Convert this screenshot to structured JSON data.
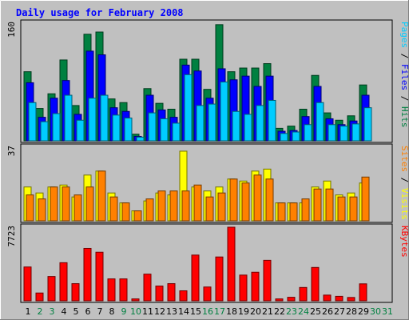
{
  "chart_data": {
    "type": "bar",
    "title": "Daily usage for February 2008",
    "categories": [
      "1",
      "2",
      "3",
      "4",
      "5",
      "6",
      "7",
      "8",
      "9",
      "10",
      "11",
      "12",
      "13",
      "14",
      "15",
      "16",
      "17",
      "18",
      "19",
      "20",
      "21",
      "22",
      "23",
      "24",
      "25",
      "26",
      "27",
      "28",
      "29",
      "30",
      "31"
    ],
    "weekend_days": [
      "2",
      "3",
      "9",
      "10",
      "16",
      "17",
      "23",
      "24",
      "30",
      "31"
    ],
    "panels": [
      {
        "id": "hits-files-pages",
        "ymax_label": "160",
        "ymax": 160,
        "axis_labels": [
          {
            "text": "Pages",
            "color": "#00ccff"
          },
          {
            "text": " / ",
            "color": "#000000"
          },
          {
            "text": "Files",
            "color": "#0000ff"
          },
          {
            "text": " / ",
            "color": "#000000"
          },
          {
            "text": "Hits",
            "color": "#008040"
          }
        ],
        "series": [
          {
            "name": "Hits",
            "color": "#008040",
            "values": [
              94,
              44,
              64,
              110,
              48,
              145,
              148,
              57,
              52,
              9,
              71,
              51,
              43,
              111,
              111,
              70,
              158,
              94,
              99,
              99,
              105,
              17,
              20,
              43,
              89,
              38,
              28,
              34,
              76,
              null,
              null
            ]
          },
          {
            "name": "Files",
            "color": "#0000ff",
            "values": [
              79,
              32,
              58,
              82,
              36,
              122,
              117,
              45,
              40,
              6,
              62,
              42,
              32,
              103,
              95,
              58,
              98,
              83,
              88,
              74,
              88,
              13,
              14,
              33,
              74,
              30,
              22,
              27,
              62,
              null,
              null
            ]
          },
          {
            "name": "Pages",
            "color": "#00ccff",
            "values": [
              52,
              26,
              37,
              62,
              28,
              58,
              62,
              35,
              31,
              5,
              38,
              30,
              24,
              90,
              48,
              50,
              80,
              40,
              36,
              48,
              55,
              10,
              12,
              22,
              52,
              22,
              20,
              23,
              45,
              null,
              null
            ]
          }
        ]
      },
      {
        "id": "visits-sites",
        "ymax_label": "37",
        "ymax": 37,
        "axis_labels": [
          {
            "text": "Sites",
            "color": "#ff8000"
          },
          {
            "text": " / ",
            "color": "#000000"
          },
          {
            "text": "Visits",
            "color": "#ffff00"
          }
        ],
        "series": [
          {
            "name": "Visits",
            "color": "#ffff00",
            "values": [
              17,
              14,
              17,
              18,
              12,
              23,
              25,
              14,
              9,
              5,
              10,
              14,
              13,
              35,
              17,
              15,
              17,
              21,
              20,
              25,
              26,
              9,
              9,
              9,
              17,
              20,
              13,
              14,
              19,
              null,
              null
            ]
          },
          {
            "name": "Sites",
            "color": "#ff8000",
            "values": [
              13,
              11,
              17,
              17,
              13,
              17,
              25,
              12,
              9,
              5,
              11,
              15,
              15,
              15,
              18,
              12,
              14,
              21,
              19,
              23,
              21,
              9,
              9,
              11,
              16,
              16,
              12,
              12,
              22,
              null,
              null
            ]
          }
        ]
      },
      {
        "id": "kbytes",
        "ymax_label": "7723",
        "ymax": 7723,
        "axis_labels": [
          {
            "text": "KBytes",
            "color": "#ff0000"
          }
        ],
        "series": [
          {
            "name": "KBytes",
            "color": "#ff0000",
            "values": [
              3550,
              820,
              2550,
              4000,
              1800,
              5500,
              5100,
              2300,
              2300,
              200,
              2800,
              1550,
              1800,
              1050,
              4800,
              1450,
              4600,
              7723,
              2700,
              3000,
              4250,
              200,
              370,
              1400,
              3500,
              600,
              470,
              350,
              1780,
              null,
              null
            ]
          }
        ]
      }
    ]
  },
  "colors": {
    "background": "#c0c0c0",
    "plot_bg": "#c0c0c0",
    "title": "#0000ff",
    "weekday_label": "#000000",
    "weekend_label": "#008040"
  }
}
